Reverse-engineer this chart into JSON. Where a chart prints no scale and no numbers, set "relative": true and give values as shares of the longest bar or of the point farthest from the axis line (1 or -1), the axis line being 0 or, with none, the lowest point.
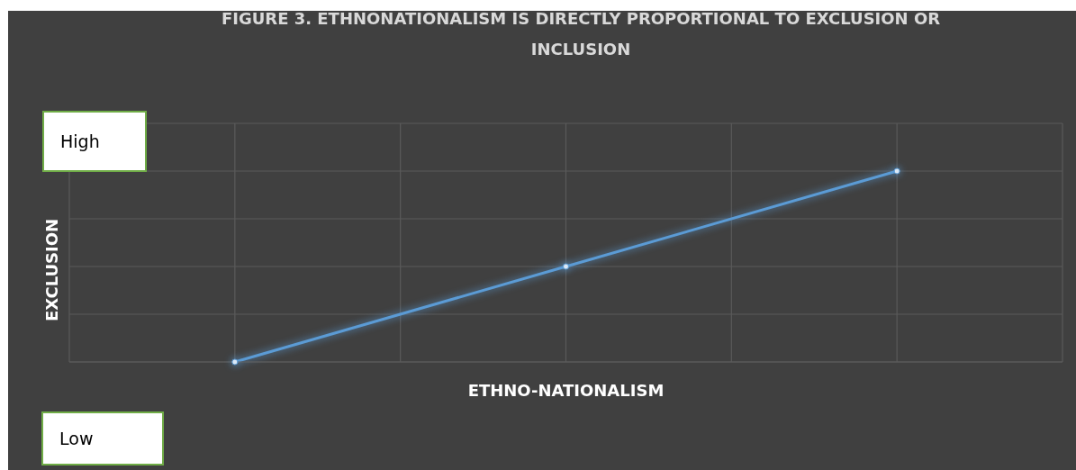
{
  "chart_data": {
    "type": "line",
    "title": "FIGURE 3. ETHNONATIONALISM IS DIRECTLY PROPORTIONAL TO EXCLUSION OR INCLUSION",
    "xlabel": "ETHNO-NATIONALISM",
    "ylabel": "EXCLUSION",
    "categories": [
      null,
      null,
      null
    ],
    "relative": true,
    "series": [
      {
        "color": "#5b9bd5",
        "values": [
          0,
          0.5,
          1
        ]
      }
    ],
    "annotations": [
      "High",
      "Low"
    ],
    "grid": true,
    "legend": false,
    "marker": "circle",
    "line_style": "solid"
  }
}
